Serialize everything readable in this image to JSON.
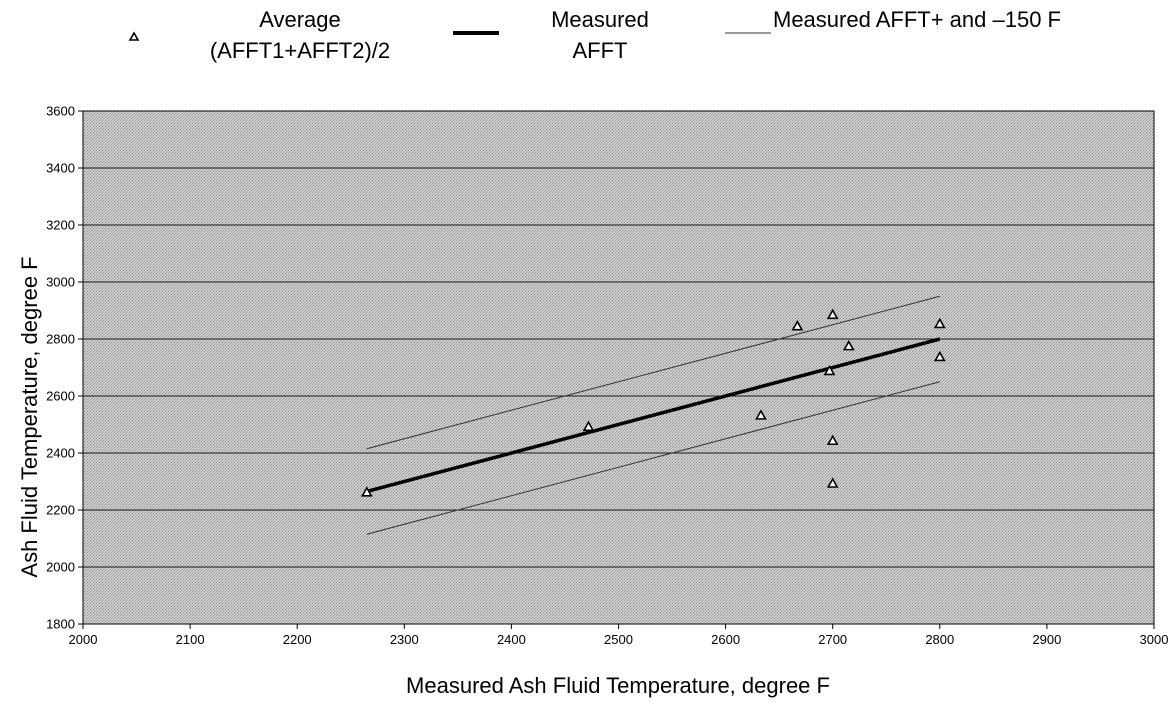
{
  "chart_data": {
    "type": "scatter",
    "title": "",
    "xlabel": "Measured Ash Fluid Temperature, degree F",
    "ylabel": "Ash Fluid Temperature, degree F",
    "xlim": [
      2000,
      3000
    ],
    "ylim": [
      1800,
      3600
    ],
    "xticks": [
      2000,
      2100,
      2200,
      2300,
      2400,
      2500,
      2600,
      2700,
      2800,
      2900,
      3000
    ],
    "yticks": [
      1800,
      2000,
      2200,
      2400,
      2600,
      2800,
      3000,
      3200,
      3400,
      3600
    ],
    "grid": "horizontal",
    "legend_position": "top",
    "legend": [
      {
        "key": "points",
        "lines": [
          "Average",
          "(AFFT1+AFFT2)/2"
        ]
      },
      {
        "key": "measured",
        "lines": [
          "Measured",
          "AFFT"
        ]
      },
      {
        "key": "band",
        "lines": [
          "Measured AFFT+ and –150 F"
        ]
      }
    ],
    "series": [
      {
        "kind": "scatter",
        "x": [
          2265,
          2472,
          2633,
          2667,
          2697,
          2700,
          2700,
          2700,
          2715,
          2800,
          2800
        ],
        "y": [
          2262,
          2492,
          2532,
          2845,
          2688,
          2885,
          2443,
          2293,
          2775,
          2853,
          2737
        ]
      },
      {
        "kind": "line",
        "x": [
          2265,
          2800
        ],
        "y": [
          2265,
          2800
        ]
      },
      {
        "kind": "band",
        "x": [
          2265,
          2800
        ],
        "offset": 150
      }
    ],
    "colors": {
      "plot_bg": "#c4c4c4",
      "grid": "#1a1a1a",
      "line": "#000000",
      "band": "#333333",
      "marker": "#000000"
    }
  }
}
